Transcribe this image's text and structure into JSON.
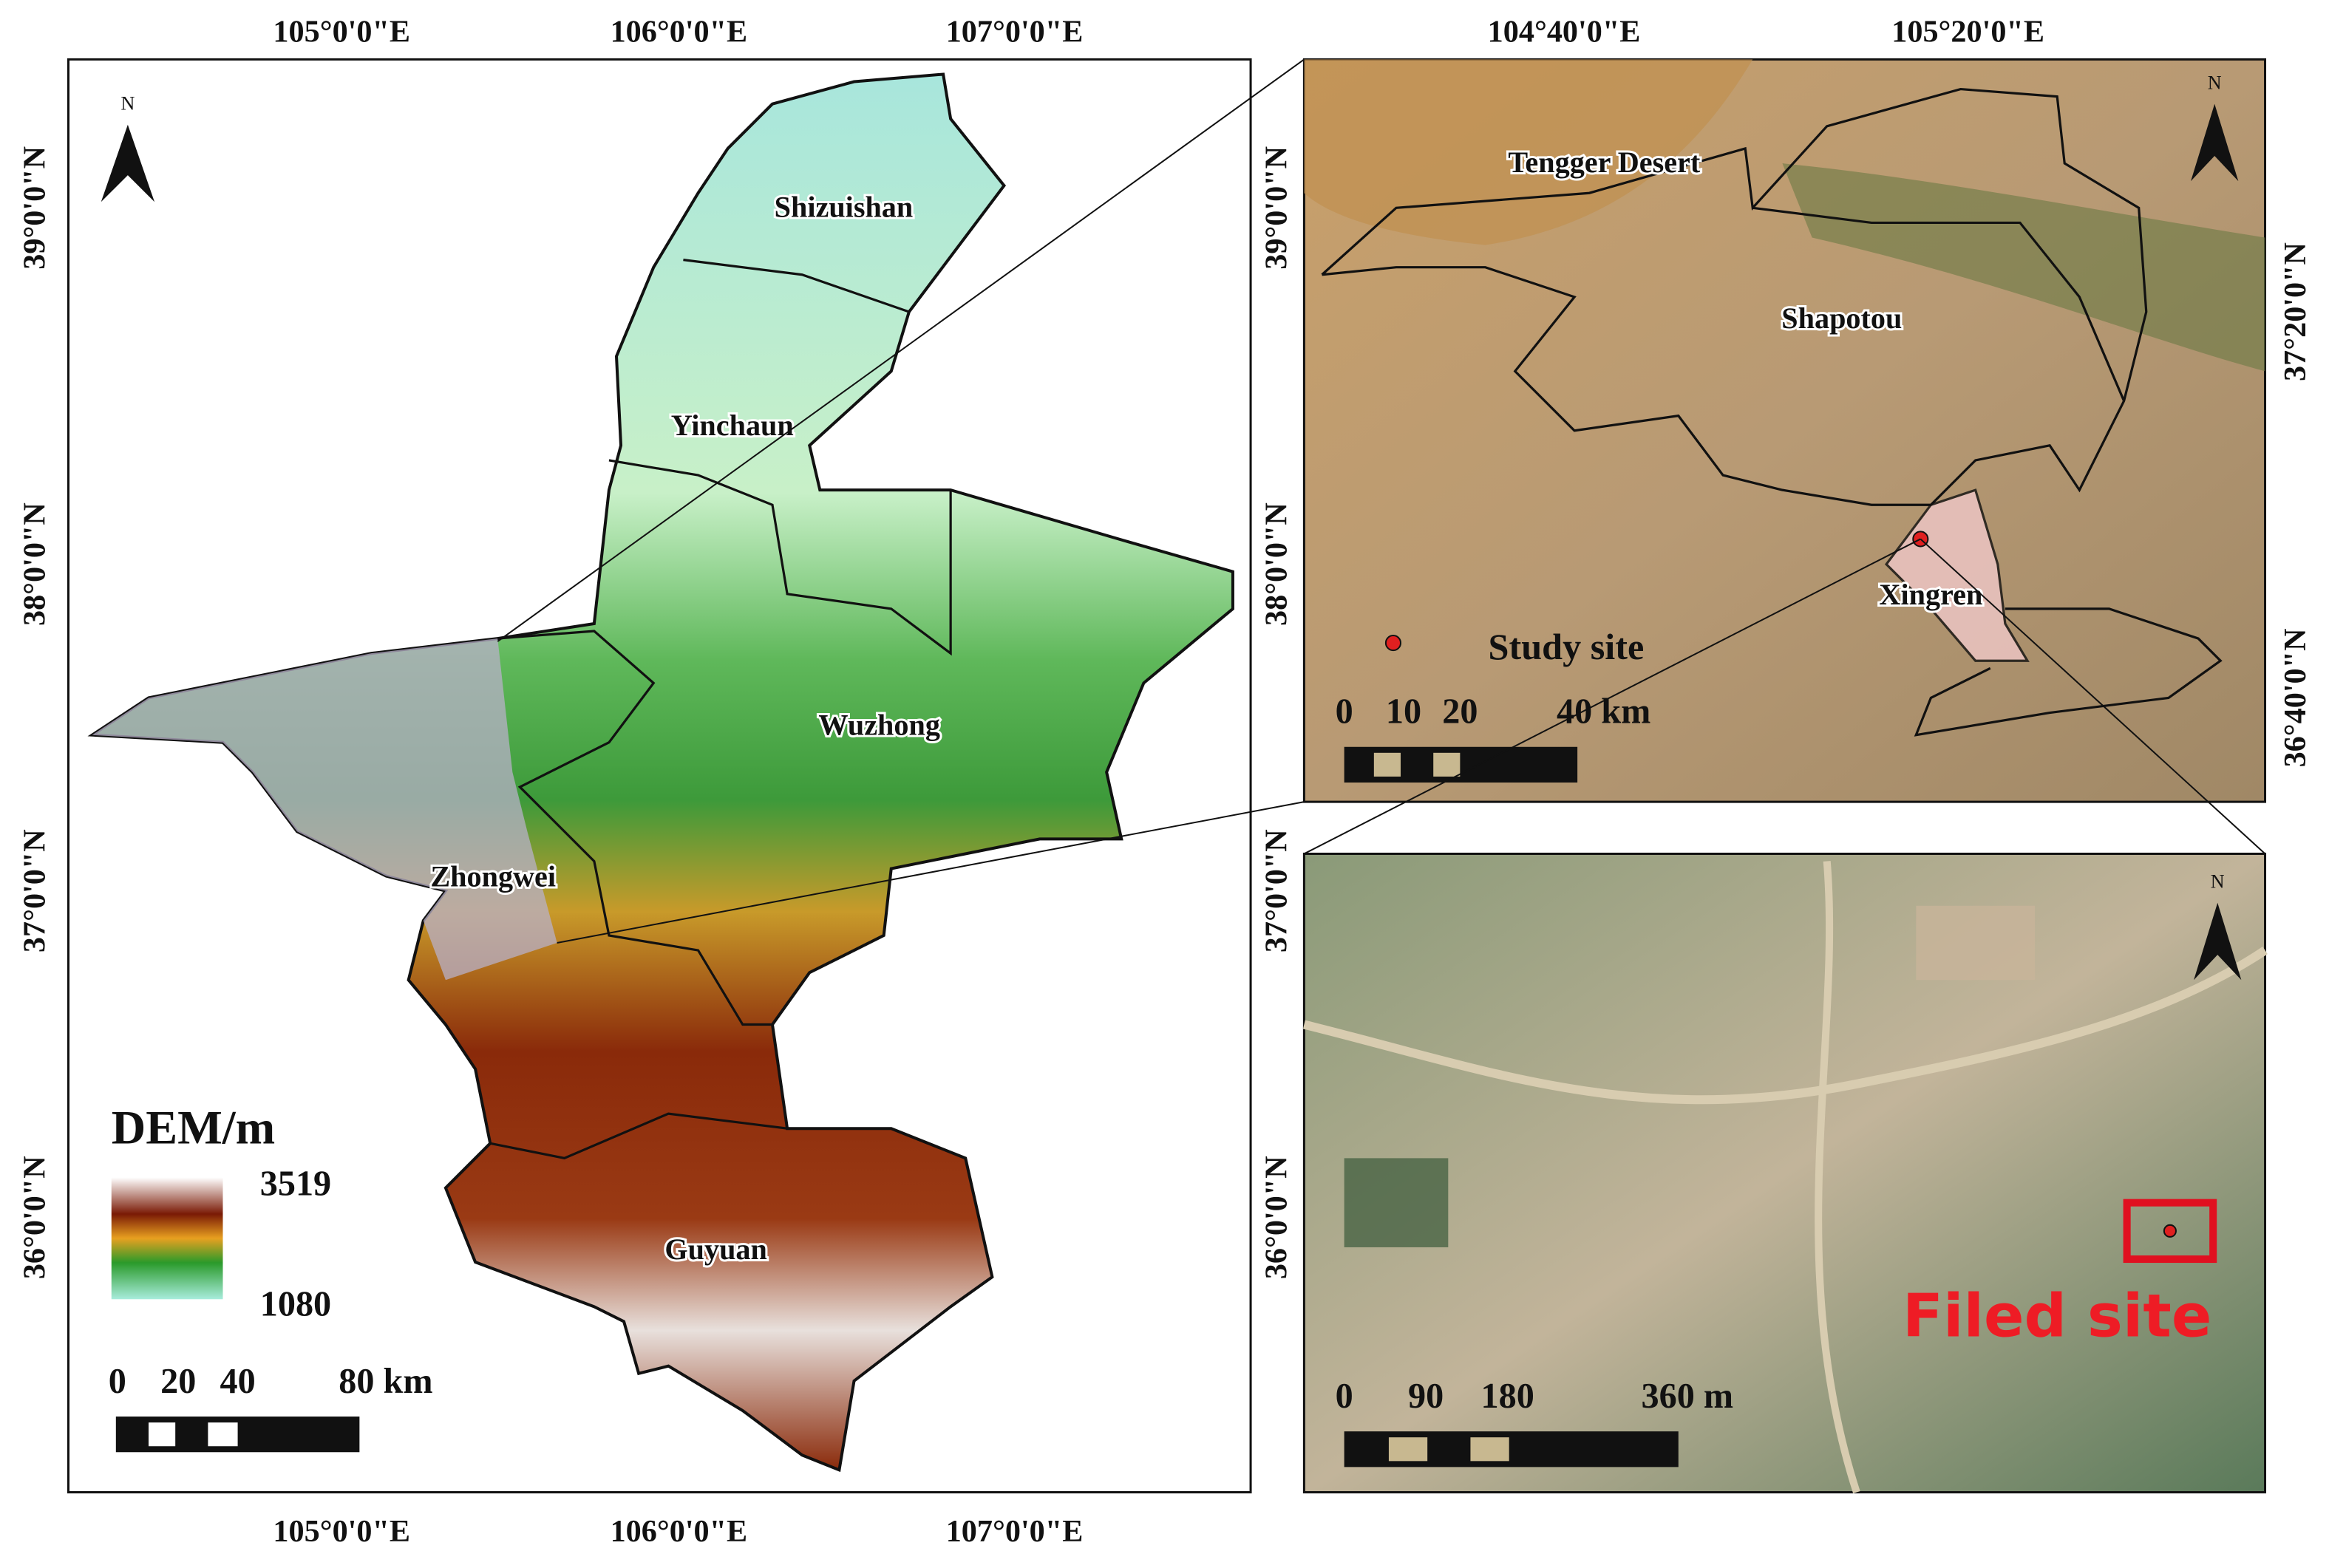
{
  "main_map": {
    "top_axis": [
      "105°0'0\"E",
      "106°0'0\"E",
      "107°0'0\"E"
    ],
    "bottom_axis": [
      "105°0'0\"E",
      "106°0'0\"E",
      "107°0'0\"E"
    ],
    "left_axis": [
      "39°0'0\"N",
      "38°0'0\"N",
      "37°0'0\"N",
      "36°0'0\"N"
    ],
    "right_axis": [
      "39°0'0\"N",
      "38°0'0\"N",
      "37°0'0\"N",
      "36°0'0\"N"
    ],
    "regions": [
      "Shizuishan",
      "Yinchaun",
      "Wuzhong",
      "Zhongwei",
      "Guyuan"
    ],
    "north": "N",
    "legend": {
      "title": "DEM/m",
      "max": "3519",
      "min": "1080"
    },
    "scale_bar": [
      "0",
      "20",
      "40",
      "80 km"
    ]
  },
  "inset_regional": {
    "top_axis": [
      "104°40'0\"E",
      "105°20'0\"E"
    ],
    "right_axis": [
      "37°20'0\"N",
      "36°40'0\"N"
    ],
    "labels": [
      "Tengger Desert",
      "Shapotou",
      "Xingren",
      "Study site"
    ],
    "north": "N",
    "scale_bar": [
      "0",
      "10",
      "20",
      "40 km"
    ]
  },
  "inset_site": {
    "north": "N",
    "site_label": "Filed site",
    "scale_bar": [
      "0",
      "90",
      "180",
      "360 m"
    ]
  }
}
